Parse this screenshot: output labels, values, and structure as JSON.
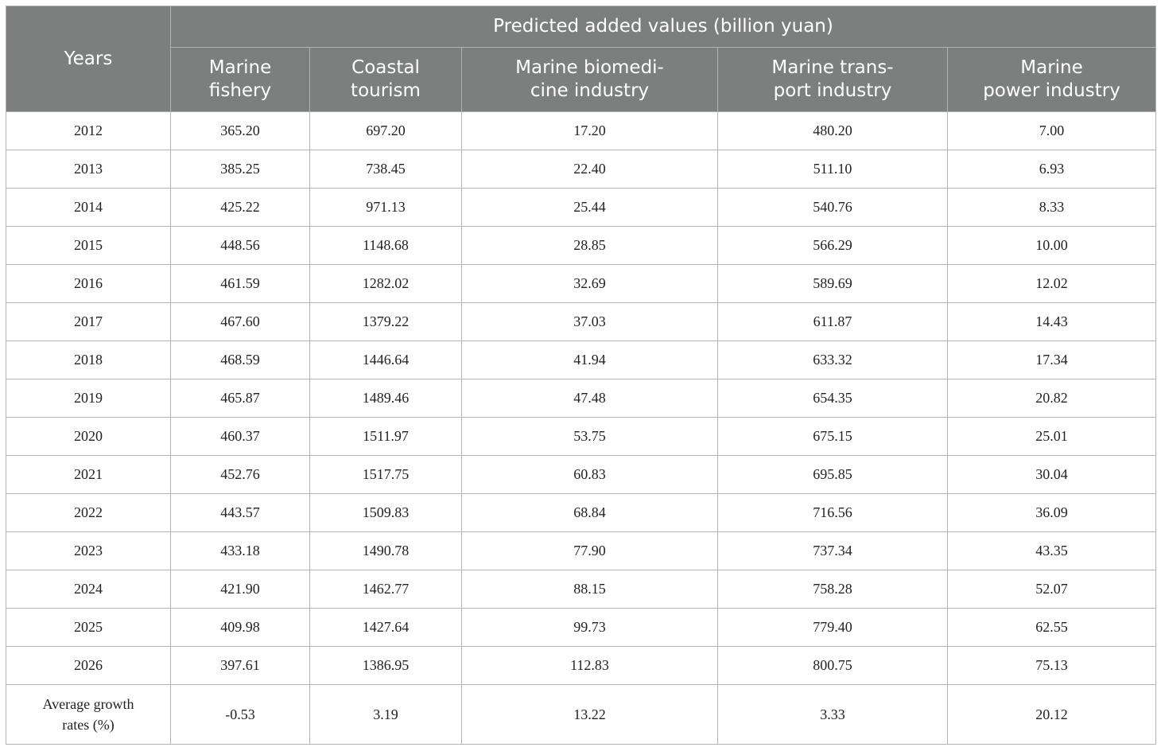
{
  "table": {
    "row_header": "Years",
    "group_header": "Predicted added values (billion yuan)",
    "columns": [
      [
        "Marine",
        "fishery"
      ],
      [
        "Coastal",
        "tourism"
      ],
      [
        "Marine biomedi-",
        "cine industry"
      ],
      [
        "Marine trans-",
        "port industry"
      ],
      [
        "Marine",
        "power industry"
      ]
    ],
    "rows": [
      {
        "year": "2012",
        "values": [
          "365.20",
          "697.20",
          "17.20",
          "480.20",
          "7.00"
        ]
      },
      {
        "year": "2013",
        "values": [
          "385.25",
          "738.45",
          "22.40",
          "511.10",
          "6.93"
        ]
      },
      {
        "year": "2014",
        "values": [
          "425.22",
          "971.13",
          "25.44",
          "540.76",
          "8.33"
        ]
      },
      {
        "year": "2015",
        "values": [
          "448.56",
          "1148.68",
          "28.85",
          "566.29",
          "10.00"
        ]
      },
      {
        "year": "2016",
        "values": [
          "461.59",
          "1282.02",
          "32.69",
          "589.69",
          "12.02"
        ]
      },
      {
        "year": "2017",
        "values": [
          "467.60",
          "1379.22",
          "37.03",
          "611.87",
          "14.43"
        ]
      },
      {
        "year": "2018",
        "values": [
          "468.59",
          "1446.64",
          "41.94",
          "633.32",
          "17.34"
        ]
      },
      {
        "year": "2019",
        "values": [
          "465.87",
          "1489.46",
          "47.48",
          "654.35",
          "20.82"
        ]
      },
      {
        "year": "2020",
        "values": [
          "460.37",
          "1511.97",
          "53.75",
          "675.15",
          "25.01"
        ]
      },
      {
        "year": "2021",
        "values": [
          "452.76",
          "1517.75",
          "60.83",
          "695.85",
          "30.04"
        ]
      },
      {
        "year": "2022",
        "values": [
          "443.57",
          "1509.83",
          "68.84",
          "716.56",
          "36.09"
        ]
      },
      {
        "year": "2023",
        "values": [
          "433.18",
          "1490.78",
          "77.90",
          "737.34",
          "43.35"
        ]
      },
      {
        "year": "2024",
        "values": [
          "421.90",
          "1462.77",
          "88.15",
          "758.28",
          "52.07"
        ]
      },
      {
        "year": "2025",
        "values": [
          "409.98",
          "1427.64",
          "99.73",
          "779.40",
          "62.55"
        ]
      },
      {
        "year": "2026",
        "values": [
          "397.61",
          "1386.95",
          "112.83",
          "800.75",
          "75.13"
        ]
      }
    ],
    "average": {
      "label": "Average growth rates (%)",
      "values": [
        "-0.53",
        "3.19",
        "13.22",
        "3.33",
        "20.12"
      ]
    }
  }
}
